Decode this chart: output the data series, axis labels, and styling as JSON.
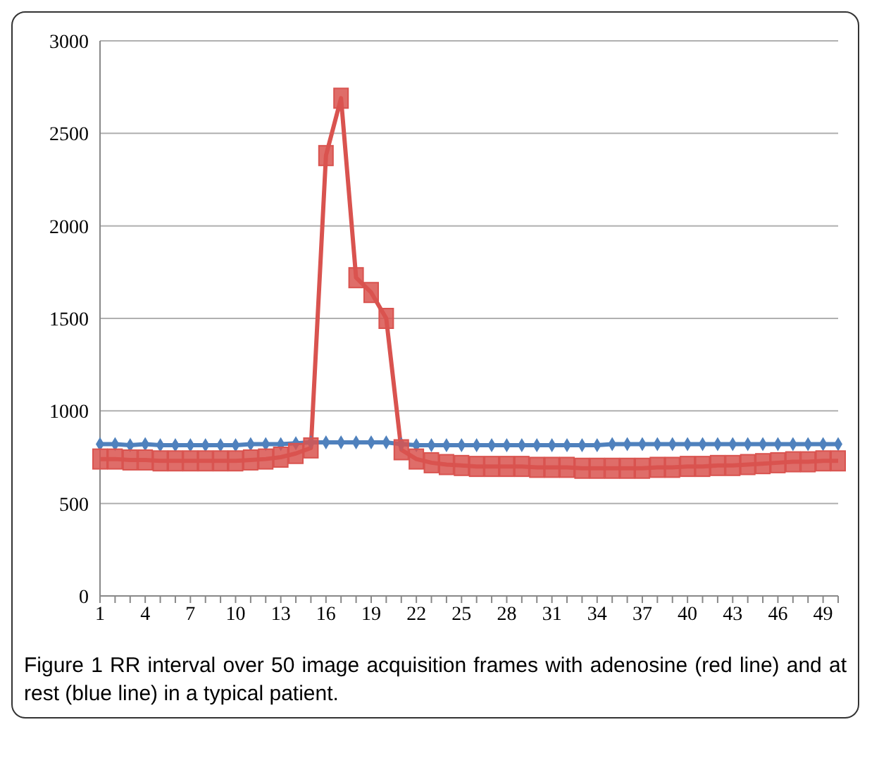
{
  "chart_data": {
    "type": "line",
    "categories": [
      "1",
      null,
      null,
      "4",
      null,
      null,
      "7",
      null,
      null,
      "10",
      null,
      null,
      "13",
      null,
      null,
      "16",
      null,
      null,
      "19",
      null,
      null,
      "22",
      null,
      null,
      "25",
      null,
      null,
      "28",
      null,
      null,
      "31",
      null,
      null,
      "34",
      null,
      null,
      "37",
      null,
      null,
      "40",
      null,
      null,
      "43",
      null,
      null,
      "46",
      null,
      null,
      "49",
      null
    ],
    "series": [
      {
        "color": "#4f81bd",
        "marker": "diamond",
        "values": [
          820,
          820,
          815,
          820,
          815,
          815,
          815,
          815,
          815,
          815,
          820,
          820,
          820,
          825,
          830,
          830,
          830,
          830,
          830,
          830,
          820,
          815,
          815,
          815,
          815,
          815,
          815,
          815,
          815,
          815,
          815,
          815,
          815,
          815,
          820,
          820,
          820,
          820,
          820,
          820,
          820,
          820,
          820,
          820,
          820,
          820,
          820,
          820,
          820,
          820
        ]
      },
      {
        "color": "#d9534f",
        "marker": "square",
        "values": [
          740,
          740,
          735,
          735,
          730,
          730,
          730,
          730,
          730,
          730,
          735,
          740,
          750,
          770,
          800,
          2380,
          2690,
          1720,
          1640,
          1500,
          790,
          740,
          720,
          710,
          705,
          700,
          700,
          700,
          700,
          695,
          695,
          695,
          690,
          690,
          690,
          690,
          690,
          695,
          695,
          700,
          700,
          705,
          705,
          710,
          715,
          720,
          725,
          725,
          730,
          730
        ]
      }
    ],
    "ylim": [
      0,
      3000
    ],
    "yticks": [
      0,
      500,
      1000,
      1500,
      2000,
      2500,
      3000
    ],
    "grid": "y",
    "annotations": [
      "Figure 1 RR interval over 50 image acquisition frames with adenosine (red line) and at rest (blue line) in a typical patient."
    ]
  }
}
